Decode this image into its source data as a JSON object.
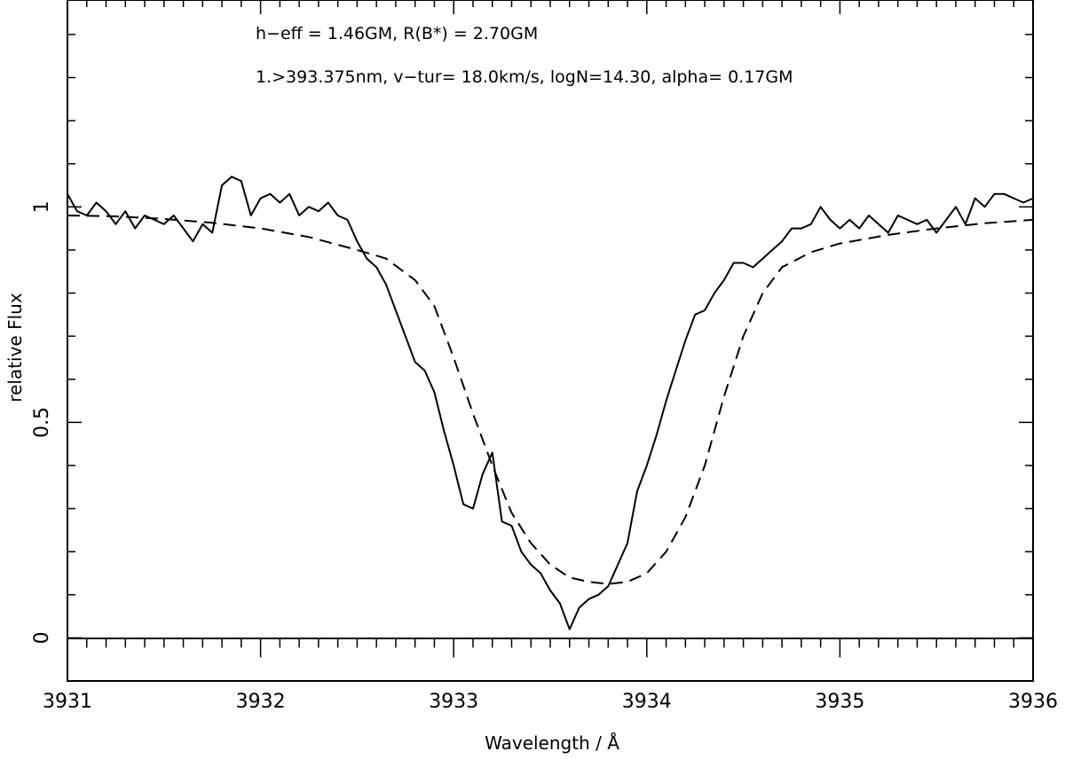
{
  "chart_data": {
    "type": "line",
    "title": "",
    "annotations": [
      "h−eff = 1.46GM,    R(B*) = 2.70GM",
      "1.>393.375nm, v−tur= 18.0km/s, logN=14.30, alpha= 0.17GM"
    ],
    "xlabel": "Wavelength / Å",
    "ylabel": "relative Flux",
    "xlim": [
      3931,
      3936
    ],
    "ylim": [
      -0.1,
      1.48
    ],
    "x_tick_labels": [
      "3931",
      "3932",
      "3933",
      "3934",
      "3935",
      "3936"
    ],
    "y_tick_labels": [
      "0",
      "0.5",
      "1"
    ],
    "grid": false,
    "series": [
      {
        "style": "solid",
        "x": [
          3931.0,
          3931.05,
          3931.1,
          3931.15,
          3931.2,
          3931.25,
          3931.3,
          3931.35,
          3931.4,
          3931.45,
          3931.5,
          3931.55,
          3931.6,
          3931.65,
          3931.7,
          3931.75,
          3931.8,
          3931.85,
          3931.9,
          3931.95,
          3932.0,
          3932.05,
          3932.1,
          3932.15,
          3932.2,
          3932.25,
          3932.3,
          3932.35,
          3932.4,
          3932.45,
          3932.5,
          3932.55,
          3932.6,
          3932.65,
          3932.7,
          3932.75,
          3932.8,
          3932.85,
          3932.9,
          3932.95,
          3933.0,
          3933.05,
          3933.1,
          3933.15,
          3933.2,
          3933.25,
          3933.3,
          3933.35,
          3933.4,
          3933.45,
          3933.5,
          3933.55,
          3933.6,
          3933.65,
          3933.7,
          3933.75,
          3933.8,
          3933.85,
          3933.9,
          3933.95,
          3934.0,
          3934.05,
          3934.1,
          3934.15,
          3934.2,
          3934.25,
          3934.3,
          3934.35,
          3934.4,
          3934.45,
          3934.5,
          3934.55,
          3934.6,
          3934.65,
          3934.7,
          3934.75,
          3934.8,
          3934.85,
          3934.9,
          3934.95,
          3935.0,
          3935.05,
          3935.1,
          3935.15,
          3935.2,
          3935.25,
          3935.3,
          3935.35,
          3935.4,
          3935.45,
          3935.5,
          3935.55,
          3935.6,
          3935.65,
          3935.7,
          3935.75,
          3935.8,
          3935.85,
          3935.9,
          3935.95,
          3936.0
        ],
        "y": [
          1.03,
          0.99,
          0.98,
          1.01,
          0.99,
          0.96,
          0.99,
          0.95,
          0.98,
          0.97,
          0.96,
          0.98,
          0.95,
          0.92,
          0.96,
          0.94,
          1.05,
          1.07,
          1.06,
          0.98,
          1.02,
          1.03,
          1.01,
          1.03,
          0.98,
          1.0,
          0.99,
          1.01,
          0.98,
          0.97,
          0.92,
          0.88,
          0.86,
          0.82,
          0.76,
          0.7,
          0.64,
          0.62,
          0.57,
          0.48,
          0.4,
          0.31,
          0.3,
          0.38,
          0.43,
          0.27,
          0.26,
          0.2,
          0.17,
          0.15,
          0.11,
          0.08,
          0.02,
          0.07,
          0.09,
          0.1,
          0.12,
          0.17,
          0.22,
          0.34,
          0.4,
          0.47,
          0.55,
          0.62,
          0.69,
          0.75,
          0.76,
          0.8,
          0.83,
          0.87,
          0.87,
          0.86,
          0.88,
          0.9,
          0.92,
          0.95,
          0.95,
          0.96,
          1.0,
          0.97,
          0.95,
          0.97,
          0.95,
          0.98,
          0.96,
          0.94,
          0.98,
          0.97,
          0.96,
          0.97,
          0.94,
          0.97,
          1.0,
          0.96,
          1.02,
          1.0,
          1.03,
          1.03,
          1.02,
          1.01,
          1.02
        ]
      },
      {
        "style": "dashed",
        "x": [
          3931.0,
          3931.25,
          3931.5,
          3931.75,
          3932.0,
          3932.25,
          3932.5,
          3932.65,
          3932.8,
          3932.9,
          3933.0,
          3933.1,
          3933.2,
          3933.3,
          3933.4,
          3933.5,
          3933.6,
          3933.7,
          3933.8,
          3933.9,
          3934.0,
          3934.1,
          3934.2,
          3934.3,
          3934.4,
          3934.5,
          3934.6,
          3934.7,
          3934.85,
          3935.0,
          3935.25,
          3935.5,
          3935.75,
          3936.0
        ],
        "y": [
          0.98,
          0.978,
          0.972,
          0.963,
          0.95,
          0.93,
          0.9,
          0.88,
          0.83,
          0.77,
          0.65,
          0.52,
          0.4,
          0.29,
          0.22,
          0.17,
          0.14,
          0.13,
          0.125,
          0.13,
          0.15,
          0.2,
          0.28,
          0.4,
          0.56,
          0.7,
          0.8,
          0.86,
          0.895,
          0.915,
          0.935,
          0.95,
          0.962,
          0.97
        ]
      }
    ]
  }
}
